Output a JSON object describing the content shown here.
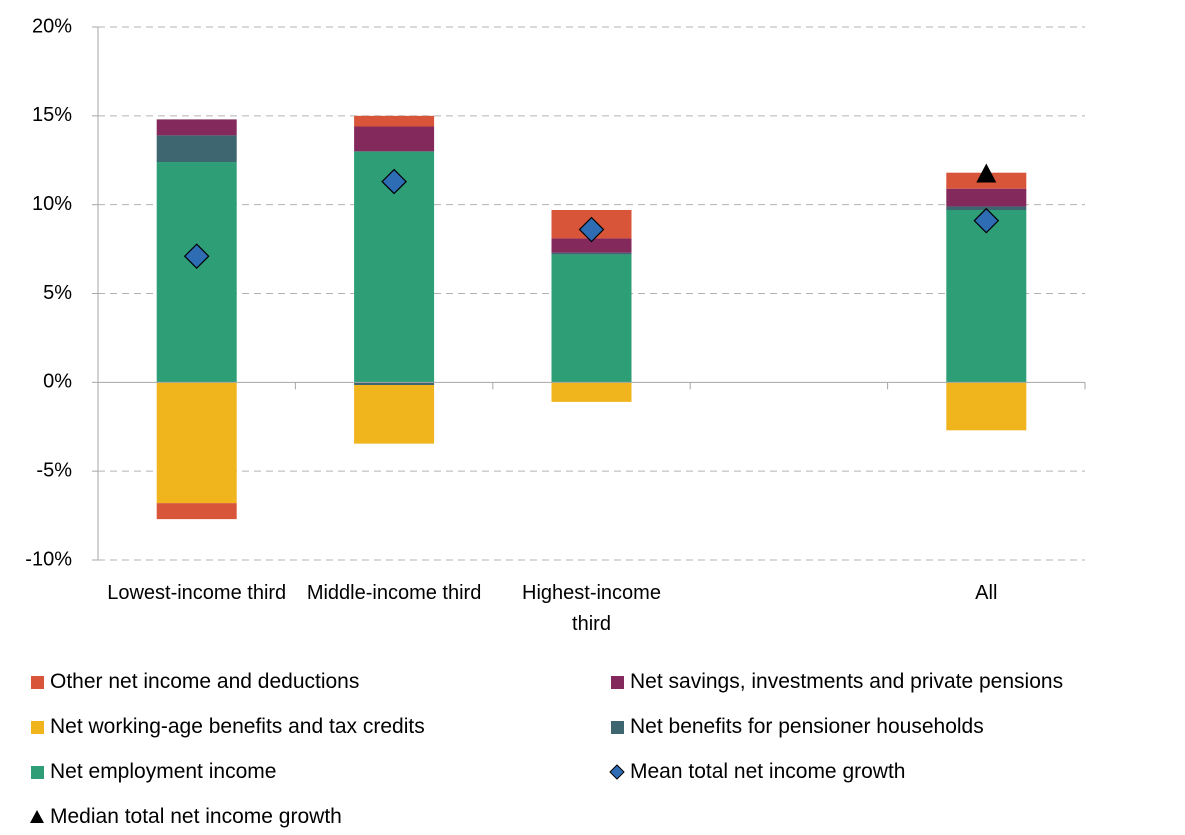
{
  "chart_data": {
    "type": "bar",
    "stacked": true,
    "categories": [
      "Lowest-income third",
      "Middle-income third",
      "Highest-income third",
      null,
      "All"
    ],
    "ylim": [
      -10,
      20
    ],
    "yticks": [
      {
        "value": -10,
        "label": "-10%"
      },
      {
        "value": -5,
        "label": "-5%"
      },
      {
        "value": 0,
        "label": "0%"
      },
      {
        "value": 5,
        "label": "5%"
      },
      {
        "value": 10,
        "label": "10%"
      },
      {
        "value": 15,
        "label": "15%"
      },
      {
        "value": 20,
        "label": "20%"
      }
    ],
    "grid": true,
    "series": [
      {
        "name": "Other net income and deductions",
        "type": "bar",
        "color": "#d9553a",
        "values": [
          -0.9,
          0.6,
          1.6,
          null,
          0.9
        ]
      },
      {
        "name": "Net savings, investments and private pensions",
        "type": "bar",
        "color": "#84295c",
        "values": [
          0.9,
          1.4,
          0.8,
          null,
          1.0
        ]
      },
      {
        "name": "Net working-age benefits and tax credits",
        "type": "bar",
        "color": "#f0b41c",
        "values": [
          -6.8,
          -3.3,
          -1.1,
          null,
          -2.7
        ]
      },
      {
        "name": "Net benefits for pensioner households",
        "type": "bar",
        "color": "#3d6670",
        "values": [
          1.5,
          -0.15,
          0.1,
          null,
          0.2
        ]
      },
      {
        "name": "Net employment income",
        "type": "bar",
        "color": "#2e9e77",
        "values": [
          12.4,
          13.0,
          7.2,
          null,
          9.7
        ]
      },
      {
        "name": "Mean total net income growth",
        "type": "marker",
        "marker": "diamond",
        "color": "#2e6db4",
        "values": [
          7.1,
          11.3,
          8.6,
          null,
          9.1
        ]
      },
      {
        "name": "Median total net income growth",
        "type": "marker",
        "marker": "triangle",
        "color": "#000000",
        "values": [
          null,
          null,
          null,
          null,
          11.7
        ]
      }
    ]
  }
}
